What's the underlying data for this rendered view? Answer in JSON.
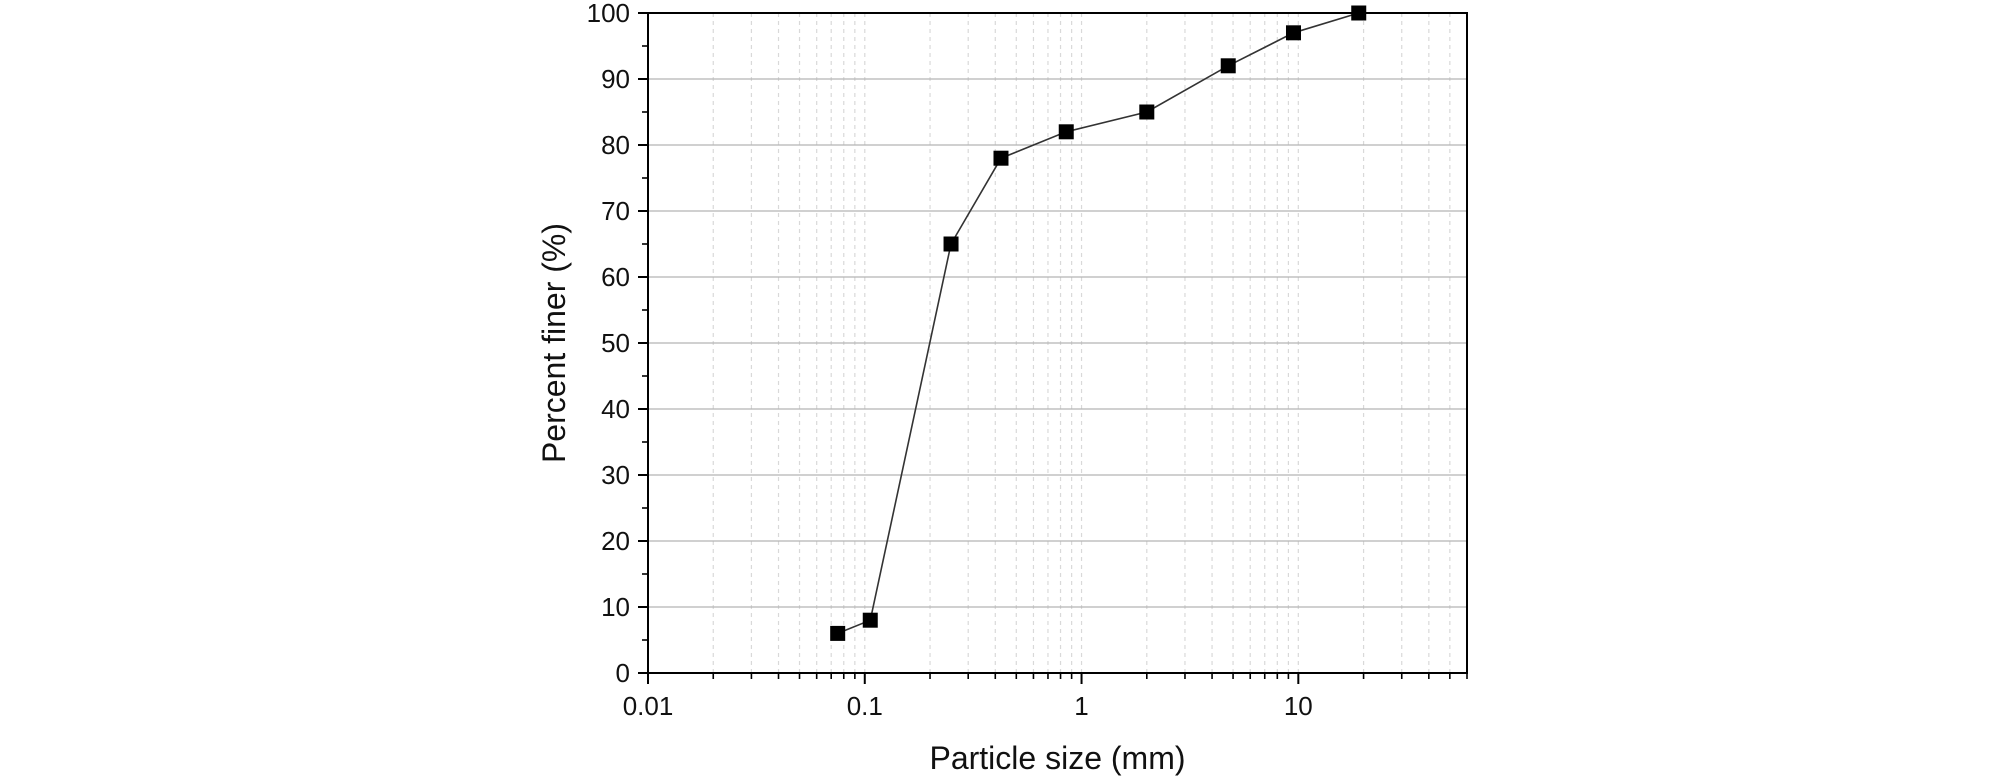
{
  "chart_data": {
    "type": "line",
    "xlabel": "Particle size (mm)",
    "ylabel": "Percent finer (%)",
    "xscale": "log",
    "xlim": [
      0.01,
      60
    ],
    "ylim": [
      0,
      100
    ],
    "x_ticks": [
      0.01,
      0.1,
      1,
      10
    ],
    "x_tick_labels": [
      "0.01",
      "0.1",
      "1",
      "10"
    ],
    "y_ticks": [
      0,
      10,
      20,
      30,
      40,
      50,
      60,
      70,
      80,
      90,
      100
    ],
    "y_tick_labels": [
      "0",
      "10",
      "20",
      "30",
      "40",
      "50",
      "60",
      "70",
      "80",
      "90",
      "100"
    ],
    "grid": {
      "major_y": true,
      "minor_x": true
    },
    "marker": "square",
    "series": [
      {
        "x": [
          0.075,
          0.106,
          0.25,
          0.425,
          0.85,
          2.0,
          4.75,
          9.5,
          19.0
        ],
        "y": [
          6,
          8,
          65,
          78,
          82,
          85,
          92,
          97,
          100
        ]
      }
    ],
    "colors": {
      "line": "#333333",
      "marker": "#000000",
      "axis": "#000000",
      "grid": "#b4b4b4",
      "minor_grid": "#d9d9d9"
    }
  }
}
